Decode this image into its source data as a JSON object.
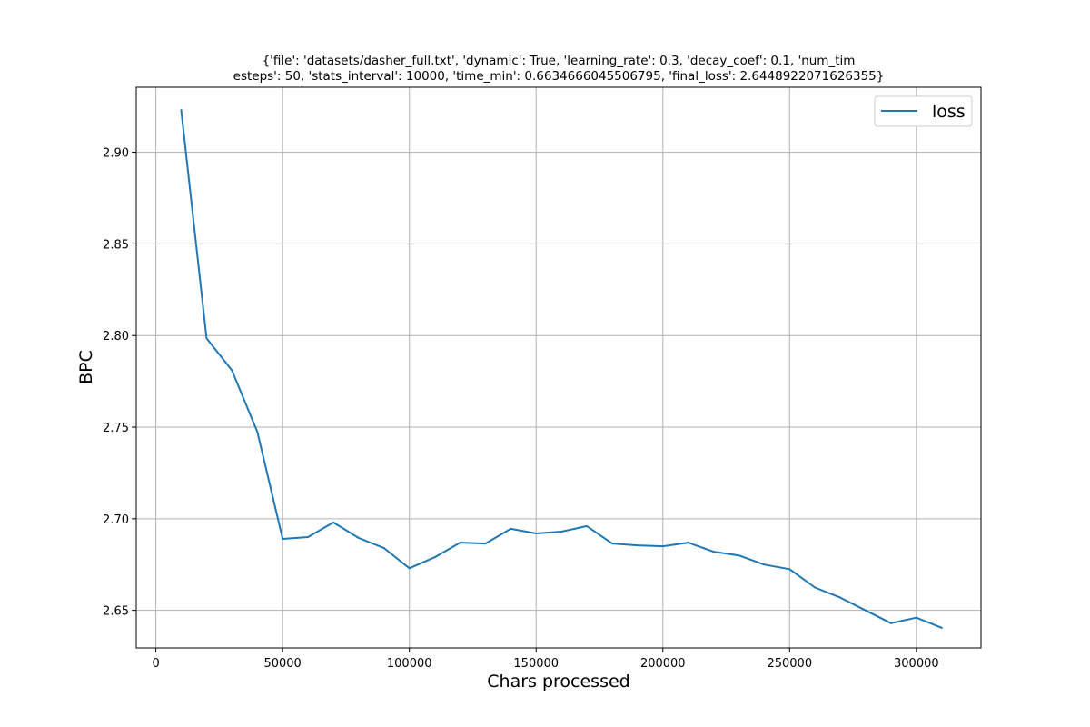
{
  "chart_data": {
    "type": "line",
    "title_lines": [
      "{'file': 'datasets/dasher_full.txt', 'dynamic': True, 'learning_rate': 0.3, 'decay_coef': 0.1, 'num_tim",
      "esteps': 50, 'stats_interval': 10000, 'time_min': 0.6634666045506795, 'final_loss': 2.6448922071626355}"
    ],
    "xlabel": "Chars processed",
    "ylabel": "BPC",
    "xlim": [
      -7750,
      325500
    ],
    "ylim": [
      2.6295,
      2.9355
    ],
    "grid": true,
    "legend_position": "top-right",
    "x_ticks": [
      0,
      50000,
      100000,
      150000,
      200000,
      250000,
      300000
    ],
    "y_ticks": [
      2.65,
      2.7,
      2.75,
      2.8,
      2.85,
      2.9
    ],
    "x_tick_labels": [
      "0",
      "50000",
      "100000",
      "150000",
      "200000",
      "250000",
      "300000"
    ],
    "y_tick_labels": [
      "2.65",
      "2.70",
      "2.75",
      "2.80",
      "2.85",
      "2.90"
    ],
    "x": [
      10000,
      20000,
      30000,
      40000,
      50000,
      60000,
      70000,
      80000,
      90000,
      100000,
      110000,
      120000,
      130000,
      140000,
      150000,
      160000,
      170000,
      180000,
      190000,
      200000,
      210000,
      220000,
      230000,
      240000,
      250000,
      260000,
      270000,
      280000,
      290000,
      300000,
      310000
    ],
    "series": [
      {
        "name": "loss",
        "color": "#1f77b4",
        "values": [
          2.923,
          2.7985,
          2.781,
          2.7475,
          2.689,
          2.69,
          2.698,
          2.6895,
          2.684,
          2.673,
          2.679,
          2.687,
          2.6865,
          2.6945,
          2.692,
          2.693,
          2.696,
          2.6865,
          2.6855,
          2.685,
          2.687,
          2.682,
          2.68,
          2.675,
          2.6725,
          2.6625,
          2.657,
          2.65,
          2.643,
          2.646,
          2.6405
        ]
      }
    ]
  }
}
